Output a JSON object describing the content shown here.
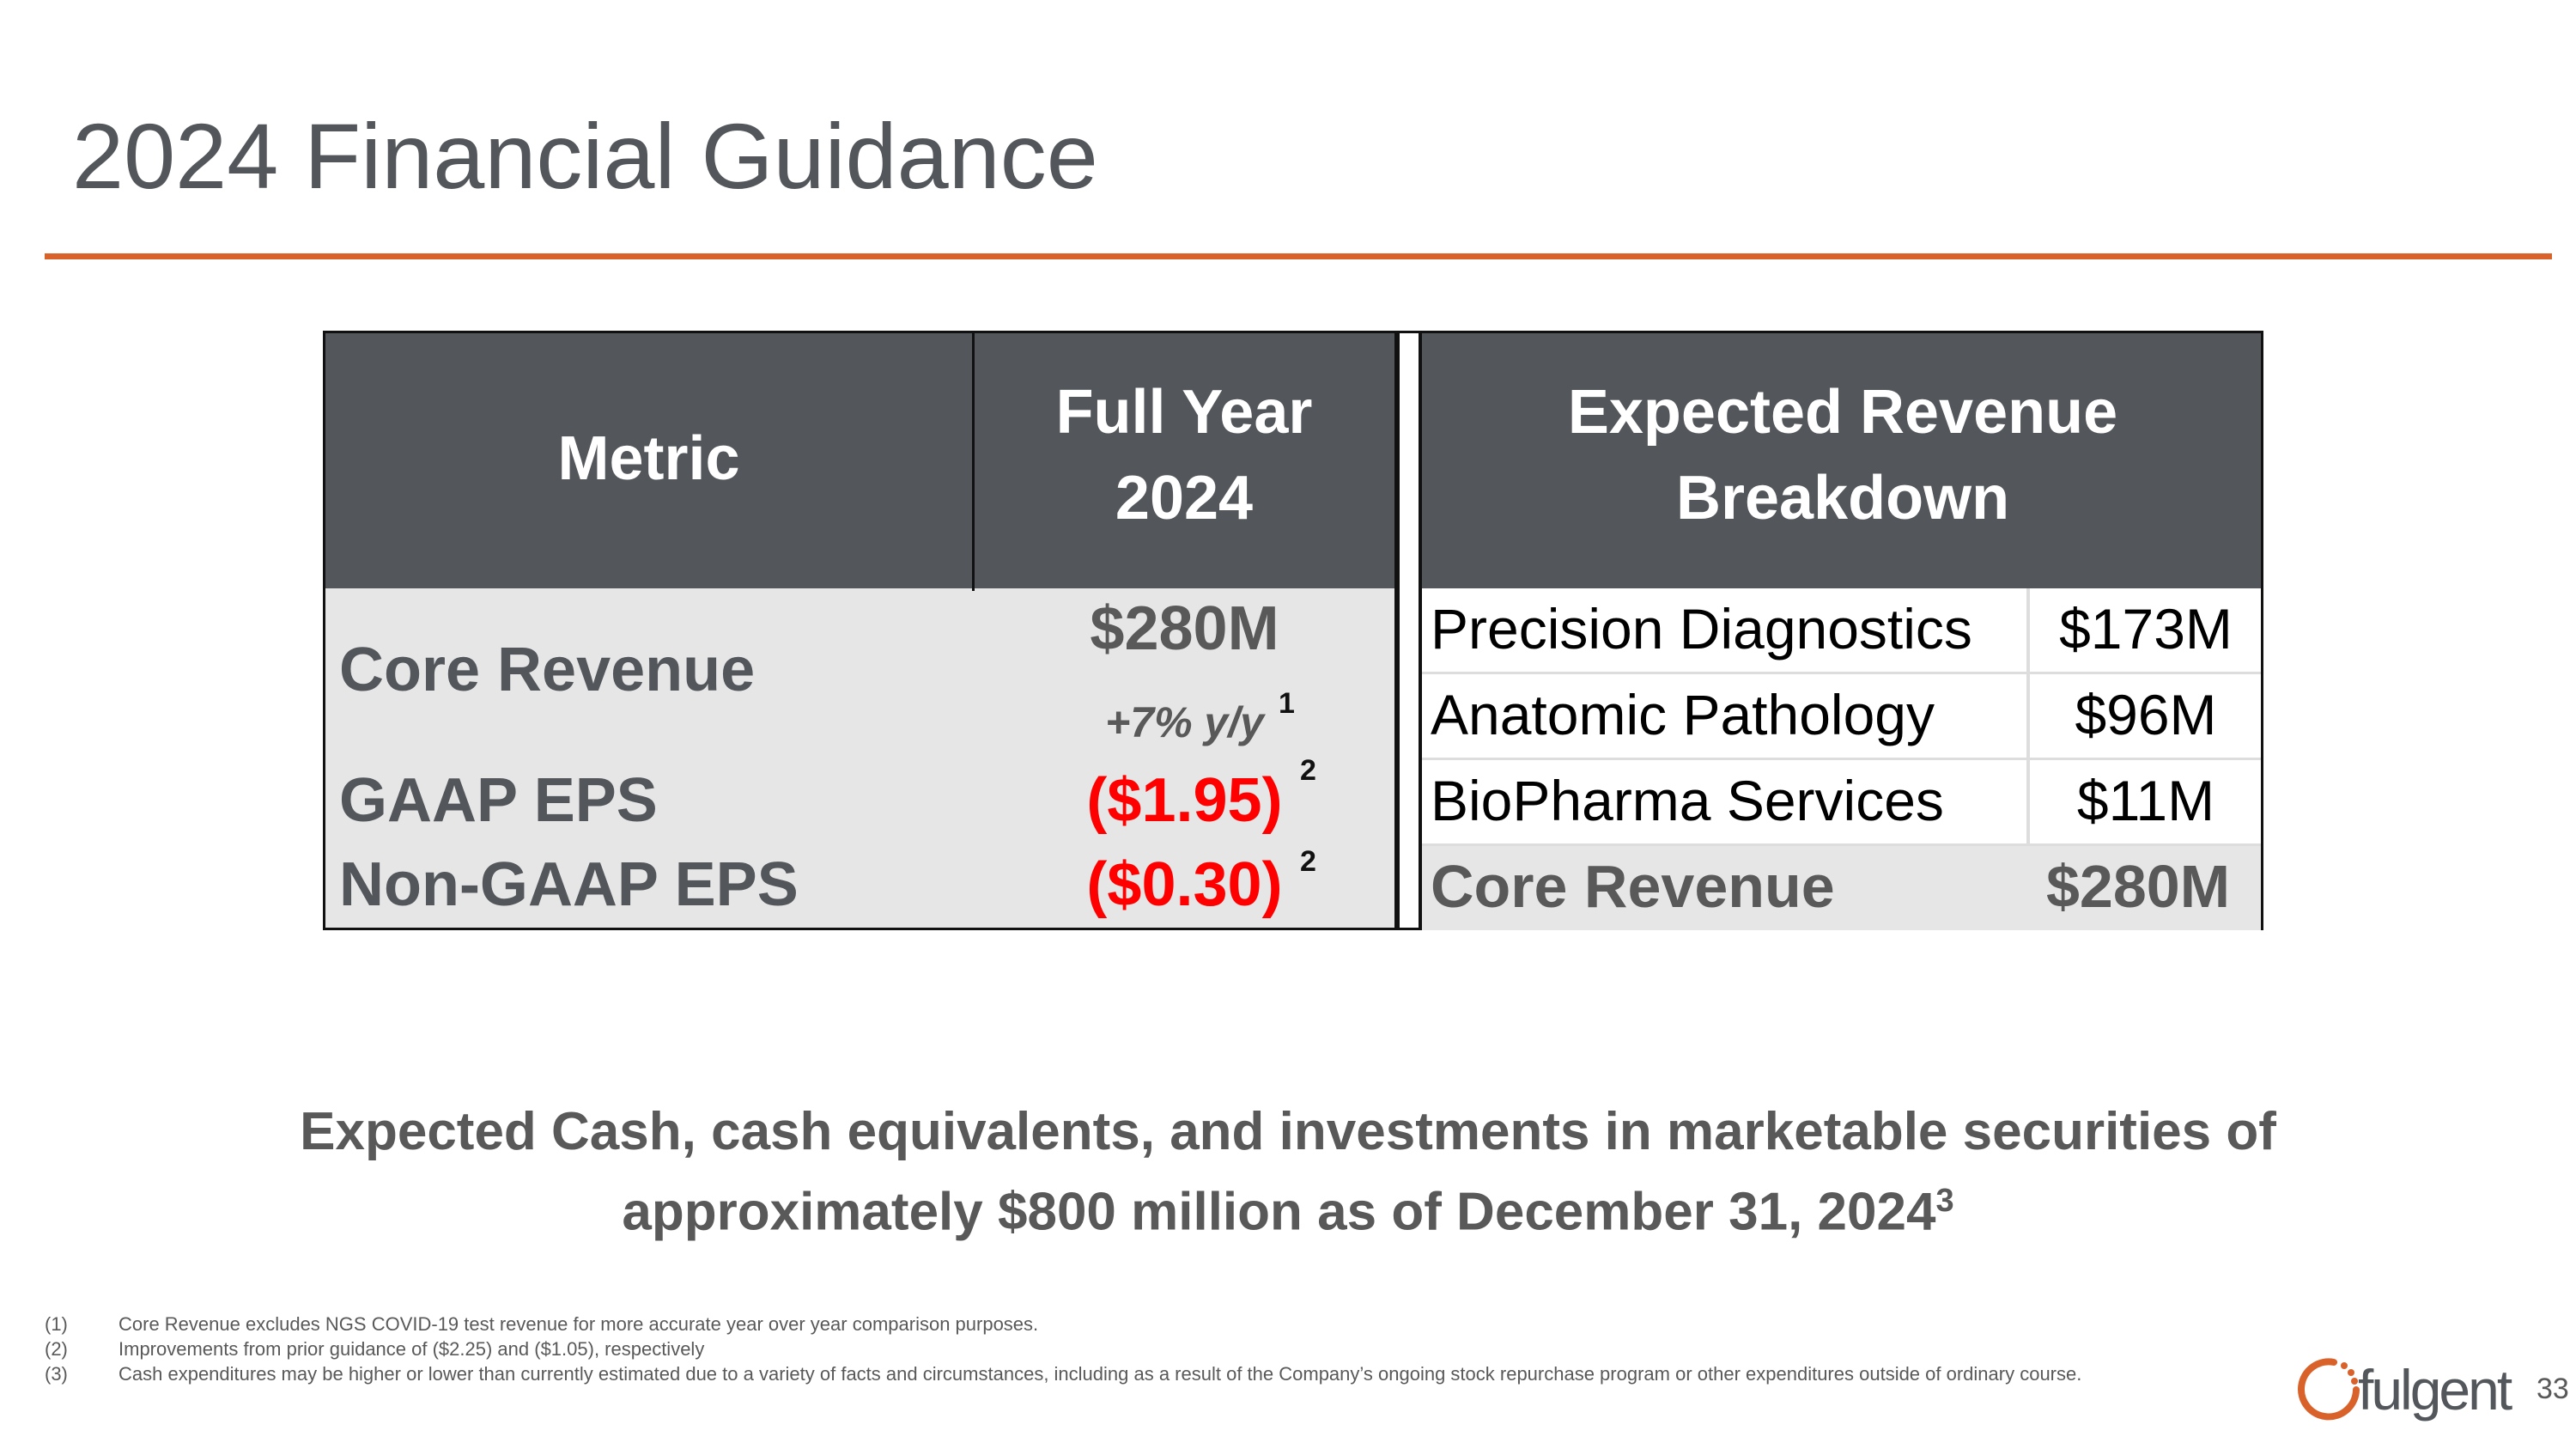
{
  "title": "2024 Financial Guidance",
  "colors": {
    "accent": "#d9622b",
    "header_bg": "#53575b",
    "negative": "#ff0000",
    "body_bg": "#e6e6e6"
  },
  "guidance_table": {
    "headers": {
      "metric": "Metric",
      "full_year": "Full Year 2024"
    },
    "rows": [
      {
        "metric": "Core Revenue",
        "value": "$280M",
        "sub": "+7% y/y",
        "footnote": "1"
      },
      {
        "metric": "GAAP EPS",
        "value": "($1.95)",
        "footnote": "2"
      },
      {
        "metric": "Non-GAAP EPS",
        "value": "($0.30)",
        "footnote": "2"
      }
    ]
  },
  "breakdown_table": {
    "header": "Expected Revenue Breakdown",
    "rows": [
      {
        "name": "Precision Diagnostics",
        "amount": "$173M"
      },
      {
        "name": "Anatomic Pathology",
        "amount": "$96M"
      },
      {
        "name": "BioPharma Services",
        "amount": "$11M"
      }
    ],
    "total": {
      "name": "Core Revenue",
      "amount": "$280M"
    }
  },
  "cash_statement": {
    "line1": "Expected Cash, cash equivalents, and investments in marketable securities of",
    "line2": "approximately $800 million as of December 31, 2024",
    "footnote": "3"
  },
  "footnotes": [
    {
      "num": "(1)",
      "text": "Core Revenue excludes NGS COVID-19 test revenue for more accurate year over year comparison purposes."
    },
    {
      "num": "(2)",
      "text": "Improvements from prior guidance of ($2.25) and ($1.05), respectively"
    },
    {
      "num": "(3)",
      "text": "Cash expenditures may be higher or lower than currently estimated due to a variety of facts and circumstances, including as a result of the Company’s ongoing stock repurchase program or other expenditures outside of ordinary course."
    }
  ],
  "logo": {
    "text": "fulgent"
  },
  "page_number": "33"
}
